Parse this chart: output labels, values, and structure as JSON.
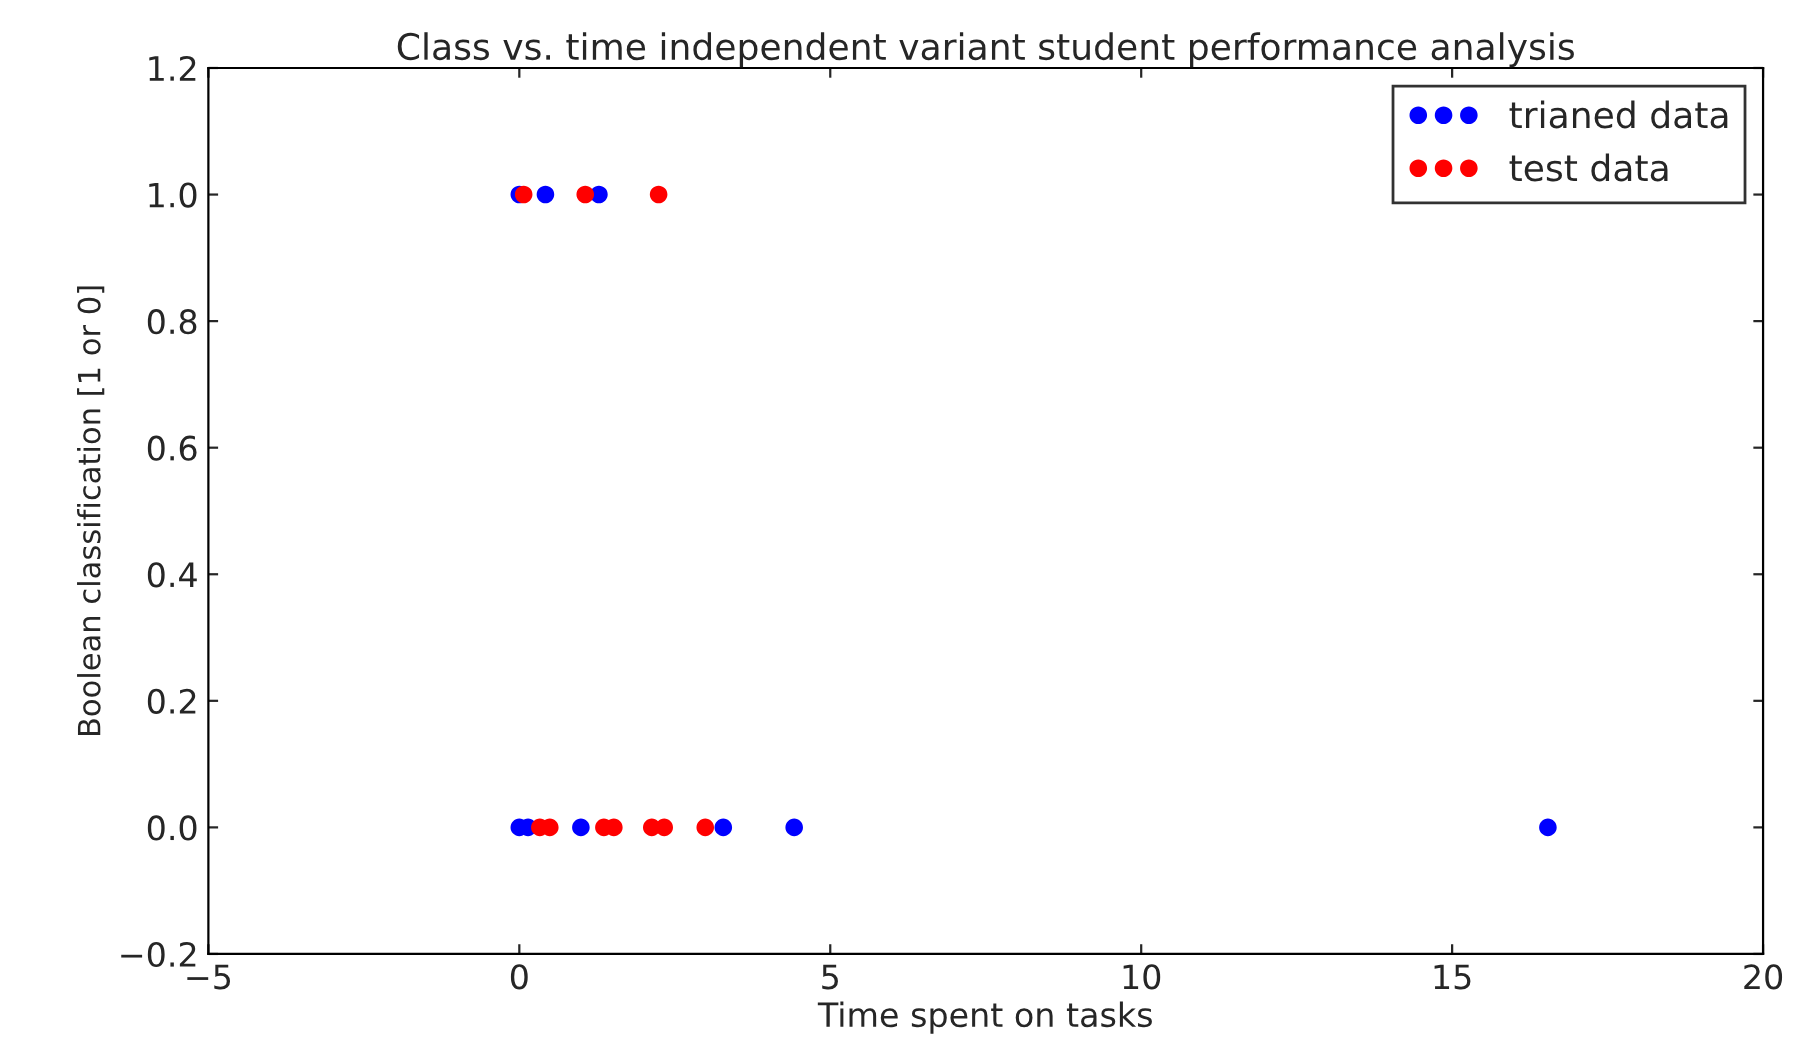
{
  "chart_data": {
    "type": "scatter",
    "title": "Class vs. time independent variant student performance analysis",
    "xlabel": "Time spent on tasks",
    "ylabel": "Boolean classification [1 or 0]",
    "series": [
      {
        "name": "trianed data",
        "color": "#0000ff",
        "x": [
          0.0,
          0.42,
          1.28,
          0.0,
          0.14,
          0.99,
          3.28,
          4.42,
          16.54
        ],
        "values": [
          1,
          1,
          1,
          0,
          0,
          0,
          0,
          0,
          0
        ]
      },
      {
        "name": "test data",
        "color": "#ff0000",
        "x": [
          0.07,
          1.06,
          2.24,
          0.33,
          0.49,
          1.36,
          1.52,
          2.13,
          2.33,
          2.99
        ],
        "values": [
          1,
          1,
          1,
          0,
          0,
          0,
          0,
          0,
          0,
          0
        ]
      }
    ],
    "xlim": [
      -5,
      20
    ],
    "xticks": [
      {
        "value": -5,
        "label": "−5"
      },
      0,
      5,
      10,
      15,
      20
    ],
    "ylim": [
      -0.2,
      1.2
    ],
    "yticks": [
      {
        "value": -0.2,
        "label": "−0.2"
      },
      {
        "value": 0,
        "label": "0.0"
      },
      {
        "value": 0.2,
        "label": "0.2"
      },
      {
        "value": 0.4,
        "label": "0.4"
      },
      {
        "value": 0.6,
        "label": "0.6"
      },
      {
        "value": 0.8,
        "label": "0.8"
      },
      {
        "value": 1,
        "label": "1.0"
      },
      {
        "value": 1.2,
        "label": "1.2"
      }
    ],
    "grid": false,
    "legend": "top right",
    "marker": "circle"
  }
}
